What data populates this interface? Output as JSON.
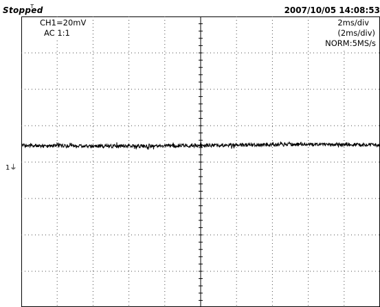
{
  "header": {
    "status": "Stopped",
    "timestamp": "2007/10/05  14:08:53"
  },
  "channel": {
    "scale_label": "CH1=20mV",
    "coupling_label": "AC  1:1",
    "ground_marker": "1"
  },
  "timebase": {
    "main_label": "2ms/div",
    "zoom_label": "(2ms/div)",
    "acquisition_label": "NORM:5MS/s"
  },
  "grid": {
    "h_divisions": 10,
    "v_divisions": 8
  },
  "trace": {
    "color": "#000000",
    "level_div": 0.3,
    "noise_div": 0.1
  }
}
